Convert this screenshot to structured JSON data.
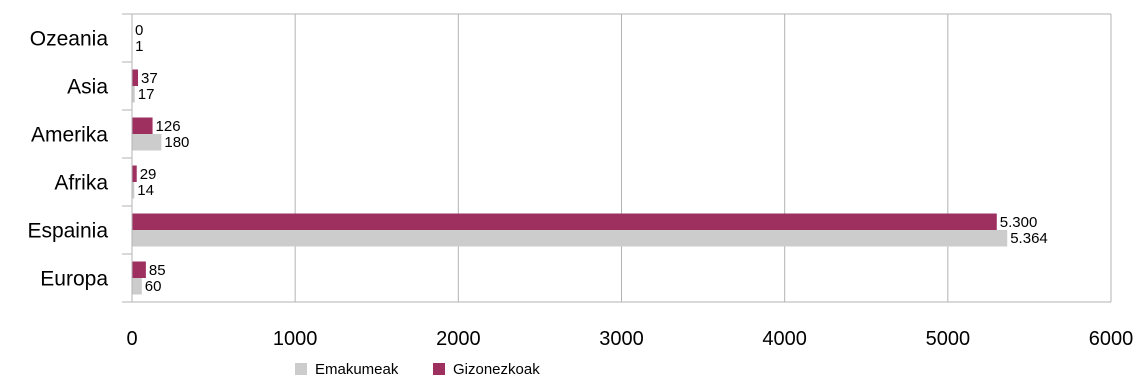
{
  "chart_data": {
    "type": "bar",
    "orientation": "horizontal",
    "categories": [
      "Ozeania",
      "Asia",
      "Amerika",
      "Afrika",
      "Espainia",
      "Europa"
    ],
    "series": [
      {
        "name": "Gizonezkoak",
        "color": "#9e3060",
        "values": [
          0,
          37,
          126,
          29,
          5300,
          85
        ],
        "labels": [
          "0",
          "37",
          "126",
          "29",
          "5.300",
          "85"
        ]
      },
      {
        "name": "Emakumeak",
        "color": "#cccccc",
        "values": [
          1,
          17,
          180,
          14,
          5364,
          60
        ],
        "labels": [
          "1",
          "17",
          "180",
          "14",
          "5.364",
          "60"
        ]
      }
    ],
    "x_ticks": [
      "0",
      "1000",
      "2000",
      "3000",
      "4000",
      "5000",
      "6000"
    ],
    "xlim": [
      0,
      6000
    ],
    "grid": true,
    "gridline_color": "#b3b3b3",
    "legend": {
      "placement": "bottom-center",
      "items": [
        {
          "name": "Emakumeak",
          "color": "#cccccc"
        },
        {
          "name": "Gizonezkoak",
          "color": "#9e3060"
        }
      ]
    },
    "title": "",
    "xlabel": "",
    "ylabel": ""
  }
}
